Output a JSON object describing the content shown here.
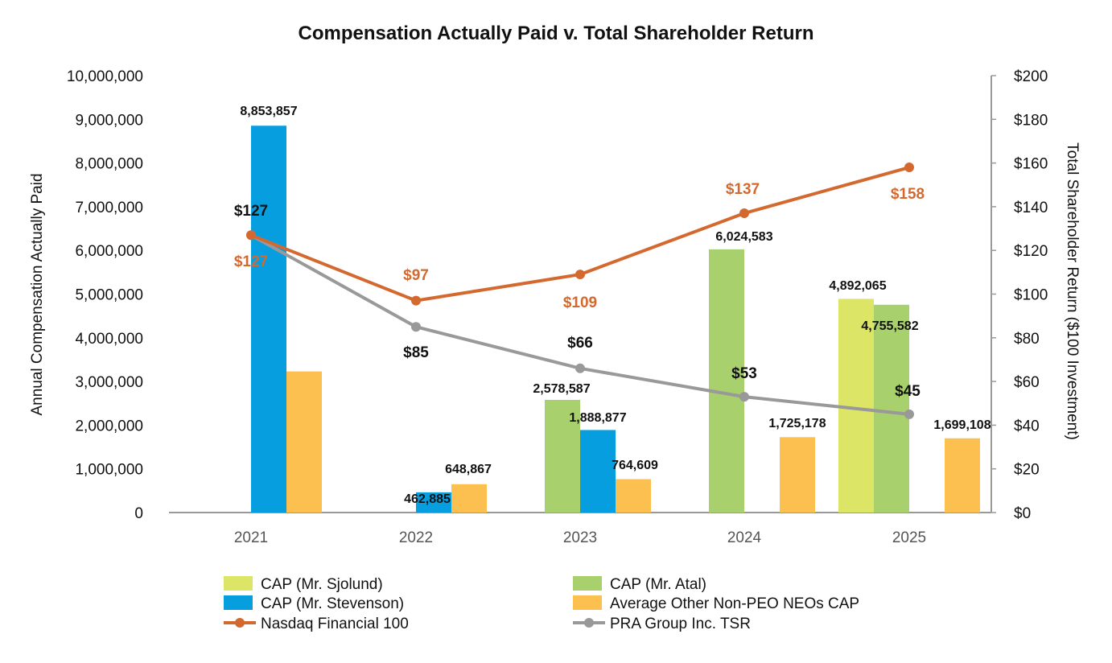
{
  "chart_data": {
    "type": "bar",
    "title": "Compensation Actually Paid v. Total Shareholder Return",
    "ylabel": "Annual Compensation Actually Paid",
    "y2label": "Total Shareholder Return ($100 Investment)",
    "categories": [
      "2021",
      "2022",
      "2023",
      "2024",
      "2025"
    ],
    "ylim": [
      0,
      10000000
    ],
    "y_ticks": [
      "0",
      "1,000,000",
      "2,000,000",
      "3,000,000",
      "4,000,000",
      "5,000,000",
      "6,000,000",
      "7,000,000",
      "8,000,000",
      "9,000,000",
      "10,000,000"
    ],
    "y2lim": [
      0,
      200
    ],
    "y2_ticks": [
      "$0",
      "$20",
      "$40",
      "$60",
      "$80",
      "$100",
      "$120",
      "$140",
      "$160",
      "$180",
      "$200"
    ],
    "grid": false,
    "legend_position": "bottom",
    "bar_series": [
      {
        "name": "CAP (Mr. Sjolund)",
        "color": "#dde566",
        "values": [
          null,
          null,
          null,
          null,
          4892065
        ],
        "labels": [
          "",
          "",
          "",
          "",
          "4,892,065"
        ]
      },
      {
        "name": "CAP (Mr. Atal)",
        "color": "#a8d06c",
        "values": [
          null,
          null,
          2578587,
          6024583,
          4755582
        ],
        "labels": [
          "",
          "",
          "2,578,587",
          "6,024,583",
          "4,755,582"
        ]
      },
      {
        "name": "CAP (Mr. Stevenson)",
        "color": "#079ee0",
        "values": [
          8853857,
          462885,
          1888877,
          null,
          null
        ],
        "labels": [
          "8,853,857",
          "462,885",
          "1,888,877",
          "",
          ""
        ]
      },
      {
        "name": "Average Other Non-PEO NEOs CAP",
        "color": "#fbc050",
        "values": [
          3230000,
          648867,
          764609,
          1725178,
          1699108
        ],
        "labels": [
          "",
          "648,867",
          "764,609",
          "1,725,178",
          "1,699,108"
        ]
      }
    ],
    "line_series": [
      {
        "name": "Nasdaq Financial 100",
        "color": "#d4692f",
        "values": [
          127,
          97,
          109,
          137,
          158
        ],
        "labels": [
          "$127",
          "$97",
          "$109",
          "$137",
          "$158"
        ]
      },
      {
        "name": "PRA Group Inc. TSR",
        "color": "#999999",
        "values": [
          127,
          85,
          66,
          53,
          45
        ],
        "labels": [
          "$127",
          "$85",
          "$66",
          "$53",
          "$45"
        ]
      }
    ],
    "legend": [
      {
        "name": "CAP (Mr. Sjolund)",
        "kind": "bar",
        "color": "#dde566"
      },
      {
        "name": "CAP (Mr. Atal)",
        "kind": "bar",
        "color": "#a8d06c"
      },
      {
        "name": "CAP (Mr. Stevenson)",
        "kind": "bar",
        "color": "#079ee0"
      },
      {
        "name": "Average Other Non-PEO NEOs CAP",
        "kind": "bar",
        "color": "#fbc050"
      },
      {
        "name": "Nasdaq Financial 100",
        "kind": "line",
        "color": "#d4692f"
      },
      {
        "name": "PRA Group Inc. TSR",
        "kind": "line",
        "color": "#999999"
      }
    ]
  }
}
